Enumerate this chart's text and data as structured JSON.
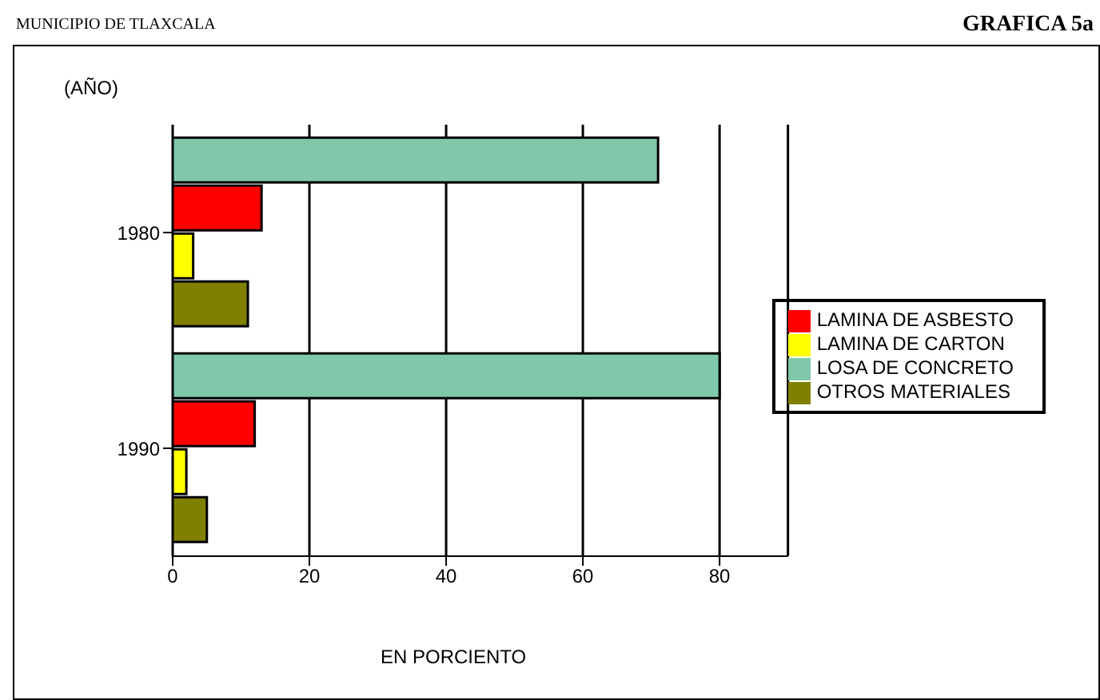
{
  "chart_data": {
    "type": "bar",
    "orientation": "horizontal",
    "title": "GRAFICA 5a",
    "annotations": [
      "MUNICIPIO DE TLAXCALA"
    ],
    "ylabel": "(AÑO)",
    "xlabel": "EN PORCIENTO",
    "categories": [
      "1980",
      "1990"
    ],
    "series": [
      {
        "name": "LOSA DE CONCRETO",
        "color": "#7fc8a9",
        "values": [
          71,
          80
        ]
      },
      {
        "name": "LAMINA DE ASBESTO",
        "color": "#ff0000",
        "values": [
          13,
          12
        ]
      },
      {
        "name": "LAMINA DE CARTON",
        "color": "#ffff00",
        "values": [
          3,
          2
        ]
      },
      {
        "name": "OTROS MATERIALES",
        "color": "#808000",
        "values": [
          11,
          5
        ]
      }
    ],
    "xlim": [
      0,
      90
    ],
    "xticks": [
      0,
      20,
      40,
      60,
      80
    ],
    "grid": "x",
    "legend": "right"
  }
}
